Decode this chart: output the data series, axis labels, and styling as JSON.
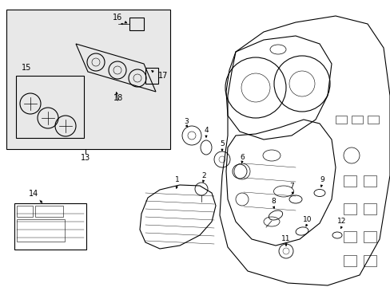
{
  "bg_color": "#ffffff",
  "line_color": "#000000",
  "shaded_color": "#e8e8e8",
  "fig_width": 4.89,
  "fig_height": 3.6,
  "dpi": 100
}
